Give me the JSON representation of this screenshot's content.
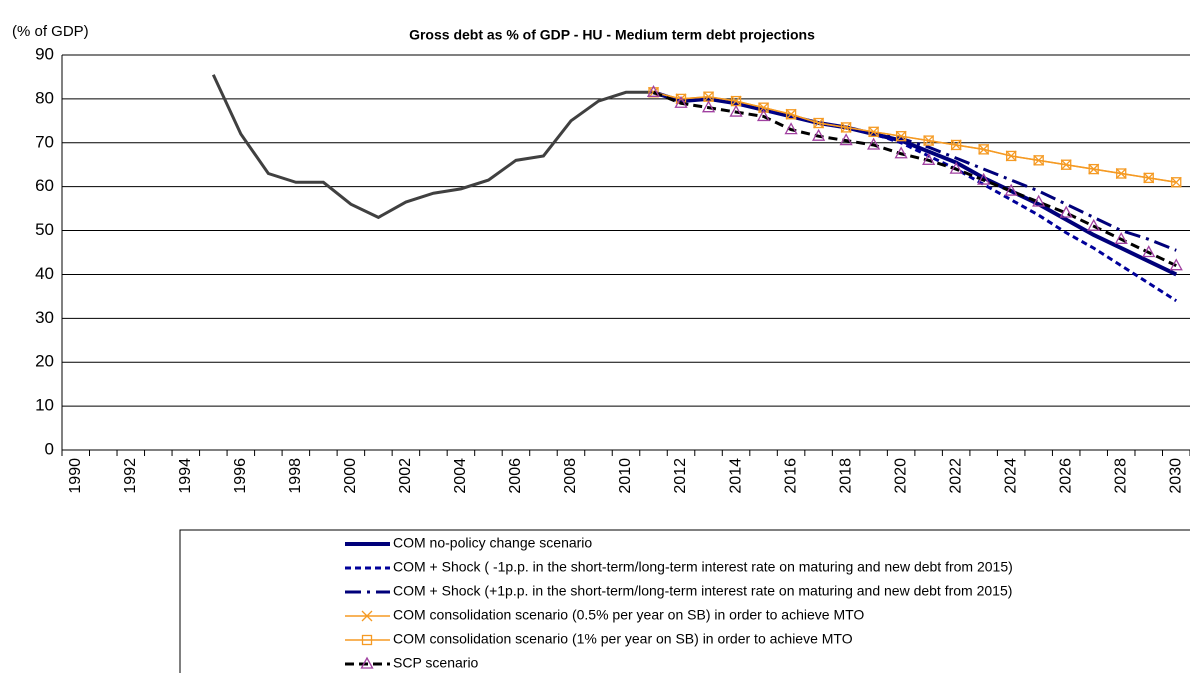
{
  "chart_data": {
    "type": "line",
    "title": "Gross debt as % of GDP - HU - Medium term debt projections",
    "y_label": "(% of GDP)",
    "categories": [
      "1990",
      null,
      "1992",
      null,
      "1994",
      null,
      "1996",
      null,
      "1998",
      null,
      "2000",
      null,
      "2002",
      null,
      "2004",
      null,
      "2006",
      null,
      "2008",
      null,
      "2010",
      null,
      "2012",
      null,
      "2014",
      null,
      "2016",
      null,
      "2018",
      null,
      "2020",
      null,
      "2022",
      null,
      "2024",
      null,
      "2026",
      null,
      "2028",
      null,
      "2030"
    ],
    "ylim": [
      0,
      90
    ],
    "yticks": [
      0,
      10,
      20,
      30,
      40,
      50,
      60,
      70,
      80,
      90
    ],
    "grid": true,
    "series": [
      {
        "color": "#404040",
        "width": 3,
        "dash": "none",
        "marker": "none",
        "values": [
          null,
          null,
          null,
          null,
          null,
          85.5,
          72,
          63,
          61,
          61,
          56,
          53,
          56.5,
          58.5,
          59.5,
          61.5,
          66,
          67,
          75,
          79.5,
          81.5,
          81.5,
          null,
          null,
          null,
          null,
          null,
          null,
          null,
          null,
          null,
          null,
          null,
          null,
          null,
          null,
          null,
          null,
          null,
          null,
          null
        ]
      },
      {
        "name": "COM no-policy change scenario",
        "color": "#00007a",
        "width": 4,
        "dash": "none",
        "marker": "none",
        "values": [
          null,
          null,
          null,
          null,
          null,
          null,
          null,
          null,
          null,
          null,
          null,
          null,
          null,
          null,
          null,
          null,
          null,
          null,
          null,
          null,
          null,
          81.5,
          79.5,
          80,
          79,
          77.5,
          76,
          74.5,
          73.5,
          72,
          70.5,
          68,
          65.5,
          62,
          59,
          56,
          52.5,
          49,
          46,
          43,
          40
        ]
      },
      {
        "name": "COM + Shock ( -1p.p. in the short-term/long-term interest rate on maturing and new debt from 2015)",
        "color": "#00009a",
        "width": 3,
        "dash": "6,4",
        "marker": "none",
        "values": [
          null,
          null,
          null,
          null,
          null,
          null,
          null,
          null,
          null,
          null,
          null,
          null,
          null,
          null,
          null,
          null,
          null,
          null,
          null,
          null,
          null,
          81.5,
          79.5,
          80,
          79,
          77.5,
          76,
          74.5,
          73.5,
          72,
          70,
          67,
          64,
          60.5,
          57,
          53.5,
          49.5,
          46,
          42,
          38,
          34
        ]
      },
      {
        "name": "COM + Shock (+1p.p. in the short-term/long-term interest rate on maturing and new debt from 2015)",
        "color": "#00007a",
        "width": 3,
        "dash": "16,6,3,6",
        "marker": "none",
        "values": [
          null,
          null,
          null,
          null,
          null,
          null,
          null,
          null,
          null,
          null,
          null,
          null,
          null,
          null,
          null,
          null,
          null,
          null,
          null,
          null,
          null,
          81.5,
          79.5,
          80,
          79,
          77.5,
          76,
          74.5,
          73.5,
          72,
          71,
          69,
          66.5,
          64,
          61.5,
          59,
          56,
          53,
          50,
          48,
          45.5
        ]
      },
      {
        "name": "COM consolidation scenario (0.5% per year on SB) in order to achieve MTO",
        "color": "#f59a23",
        "width": 1.5,
        "dash": "none",
        "marker": "x",
        "values": [
          null,
          null,
          null,
          null,
          null,
          null,
          null,
          null,
          null,
          null,
          null,
          null,
          null,
          null,
          null,
          null,
          null,
          null,
          null,
          null,
          null,
          81.5,
          80,
          80.5,
          79.5,
          78,
          76.5,
          74.5,
          73.5,
          72.5,
          71.5,
          70.5,
          69.5,
          68.5,
          67,
          66,
          65,
          64,
          63,
          62,
          61
        ]
      },
      {
        "name": "COM consolidation scenario (1% per year on SB) in order to achieve MTO",
        "color": "#f59a23",
        "width": 1.5,
        "dash": "none",
        "marker": "square",
        "values": [
          null,
          null,
          null,
          null,
          null,
          null,
          null,
          null,
          null,
          null,
          null,
          null,
          null,
          null,
          null,
          null,
          null,
          null,
          null,
          null,
          null,
          81.5,
          80,
          80.5,
          79.5,
          78,
          76.5,
          74.5,
          73.5,
          72.5,
          71.5,
          70.5,
          69.5,
          68.5,
          67,
          66,
          65,
          64,
          63,
          62,
          61
        ]
      },
      {
        "name": "SCP scenario",
        "color": "#000000",
        "marker_color": "#a040a0",
        "width": 3,
        "dash": "9,5",
        "marker": "triangle",
        "values": [
          null,
          null,
          null,
          null,
          null,
          null,
          null,
          null,
          null,
          null,
          null,
          null,
          null,
          null,
          null,
          null,
          null,
          null,
          null,
          null,
          null,
          81.5,
          79,
          78,
          77,
          76,
          73,
          71.5,
          70.5,
          69.5,
          67.5,
          66,
          64,
          61.5,
          59,
          56.5,
          54,
          51,
          48,
          45,
          42
        ]
      }
    ]
  }
}
